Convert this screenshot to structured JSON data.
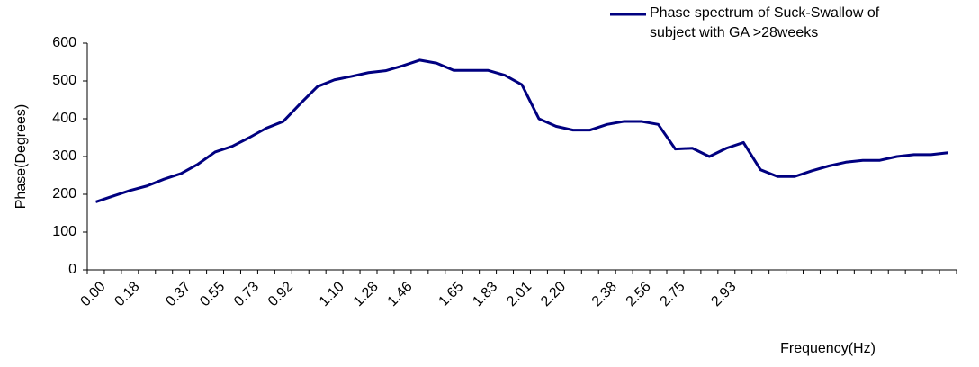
{
  "chart_data": {
    "type": "line",
    "y_label": "Phase(Degrees)",
    "x_label": "Frequency(Hz)",
    "categories": [
      "0.00",
      null,
      "0.18",
      null,
      null,
      "0.37",
      null,
      "0.55",
      null,
      "0.73",
      null,
      "0.92",
      null,
      null,
      "1.10",
      null,
      "1.28",
      null,
      "1.46",
      null,
      null,
      "1.65",
      null,
      "1.83",
      null,
      "2.01",
      null,
      "2.20",
      null,
      null,
      "2.38",
      null,
      "2.56",
      null,
      "2.75",
      null,
      null,
      "2.93",
      null,
      null,
      null,
      null,
      null,
      null,
      null,
      null,
      null,
      null,
      null,
      null,
      null
    ],
    "series": [
      {
        "name": "Phase spectrum of Suck-Swallow of subject with GA >28weeks",
        "color": "#000080",
        "values": [
          180,
          195,
          210,
          222,
          240,
          255,
          280,
          312,
          327,
          350,
          375,
          393,
          440,
          485,
          503,
          512,
          522,
          527,
          540,
          555,
          547,
          528,
          528,
          528,
          515,
          490,
          400,
          380,
          370,
          370,
          385,
          393,
          393,
          385,
          320,
          322,
          300,
          322,
          337,
          265,
          247,
          247,
          262,
          275,
          285,
          290,
          290,
          300,
          305,
          305,
          310
        ]
      }
    ],
    "ylim": [
      0,
      600
    ],
    "yticks": [
      0,
      100,
      200,
      300,
      400,
      500,
      600
    ],
    "legend": "top-right"
  }
}
